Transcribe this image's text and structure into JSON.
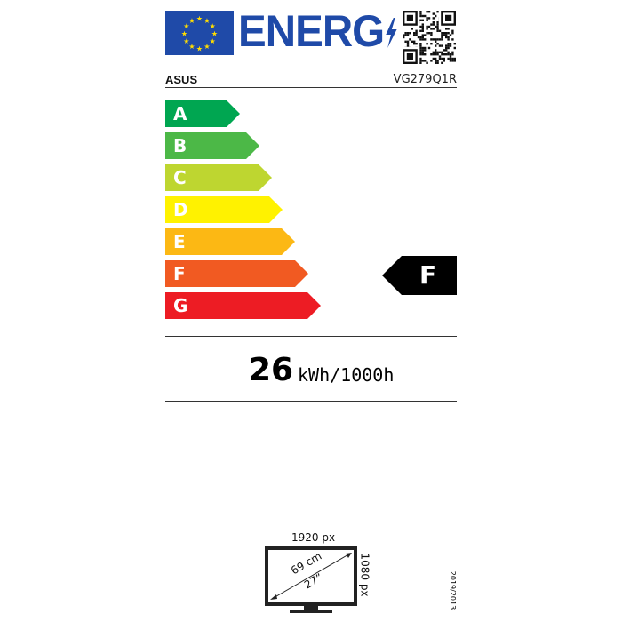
{
  "header": {
    "logo_text": "ENERG",
    "brand": "ASUS",
    "model": "VG279Q1R",
    "flag_icon": "eu-flag-icon",
    "qr_icon": "qr-code-icon"
  },
  "scale": {
    "classes": [
      {
        "label": "A",
        "color": "#00a651"
      },
      {
        "label": "B",
        "color": "#4cb847"
      },
      {
        "label": "C",
        "color": "#bed630"
      },
      {
        "label": "D",
        "color": "#fff200"
      },
      {
        "label": "E",
        "color": "#fcb814"
      },
      {
        "label": "F",
        "color": "#f15a22"
      },
      {
        "label": "G",
        "color": "#ed1c24"
      }
    ],
    "rating": "F"
  },
  "consumption": {
    "value": "26",
    "unit": "kWh/1000h"
  },
  "display": {
    "width_px": "1920 px",
    "height_px": "1080 px",
    "diag_cm": "69 cm",
    "diag_in": "27”"
  },
  "regulation": "2019/2013"
}
